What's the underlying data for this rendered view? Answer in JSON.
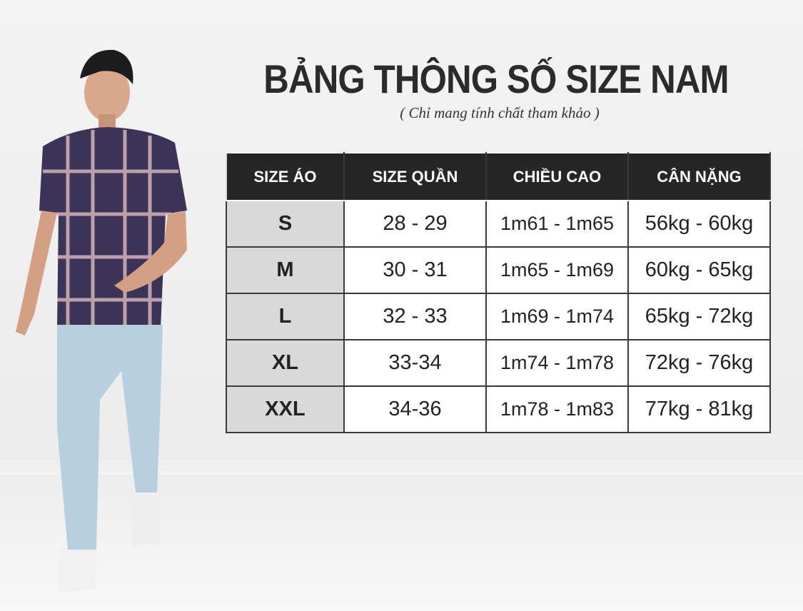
{
  "title": "BẢNG THÔNG SỐ SIZE NAM",
  "subtitle": "( Chỉ mang tính chất tham khảo )",
  "table": {
    "headers": [
      "SIZE ÁO",
      "SIZE QUẦN",
      "CHIỀU CAO",
      "CÂN NẶNG"
    ],
    "rows": [
      [
        "S",
        "28 - 29",
        "1m61 - 1m65",
        "56kg - 60kg"
      ],
      [
        "M",
        "30 - 31",
        "1m65 - 1m69",
        "60kg - 65kg"
      ],
      [
        "L",
        "32 - 33",
        "1m69 - 1m74",
        "65kg - 72kg"
      ],
      [
        "XL",
        "33-34",
        "1m74 - 1m78",
        "72kg - 76kg"
      ],
      [
        "XXL",
        "34-36",
        "1m78 - 1m83",
        "77kg - 81kg"
      ]
    ]
  },
  "colors": {
    "header_bg": "#262626",
    "size_col_bg": "#d9d9d9",
    "text": "#2b2b2b"
  }
}
